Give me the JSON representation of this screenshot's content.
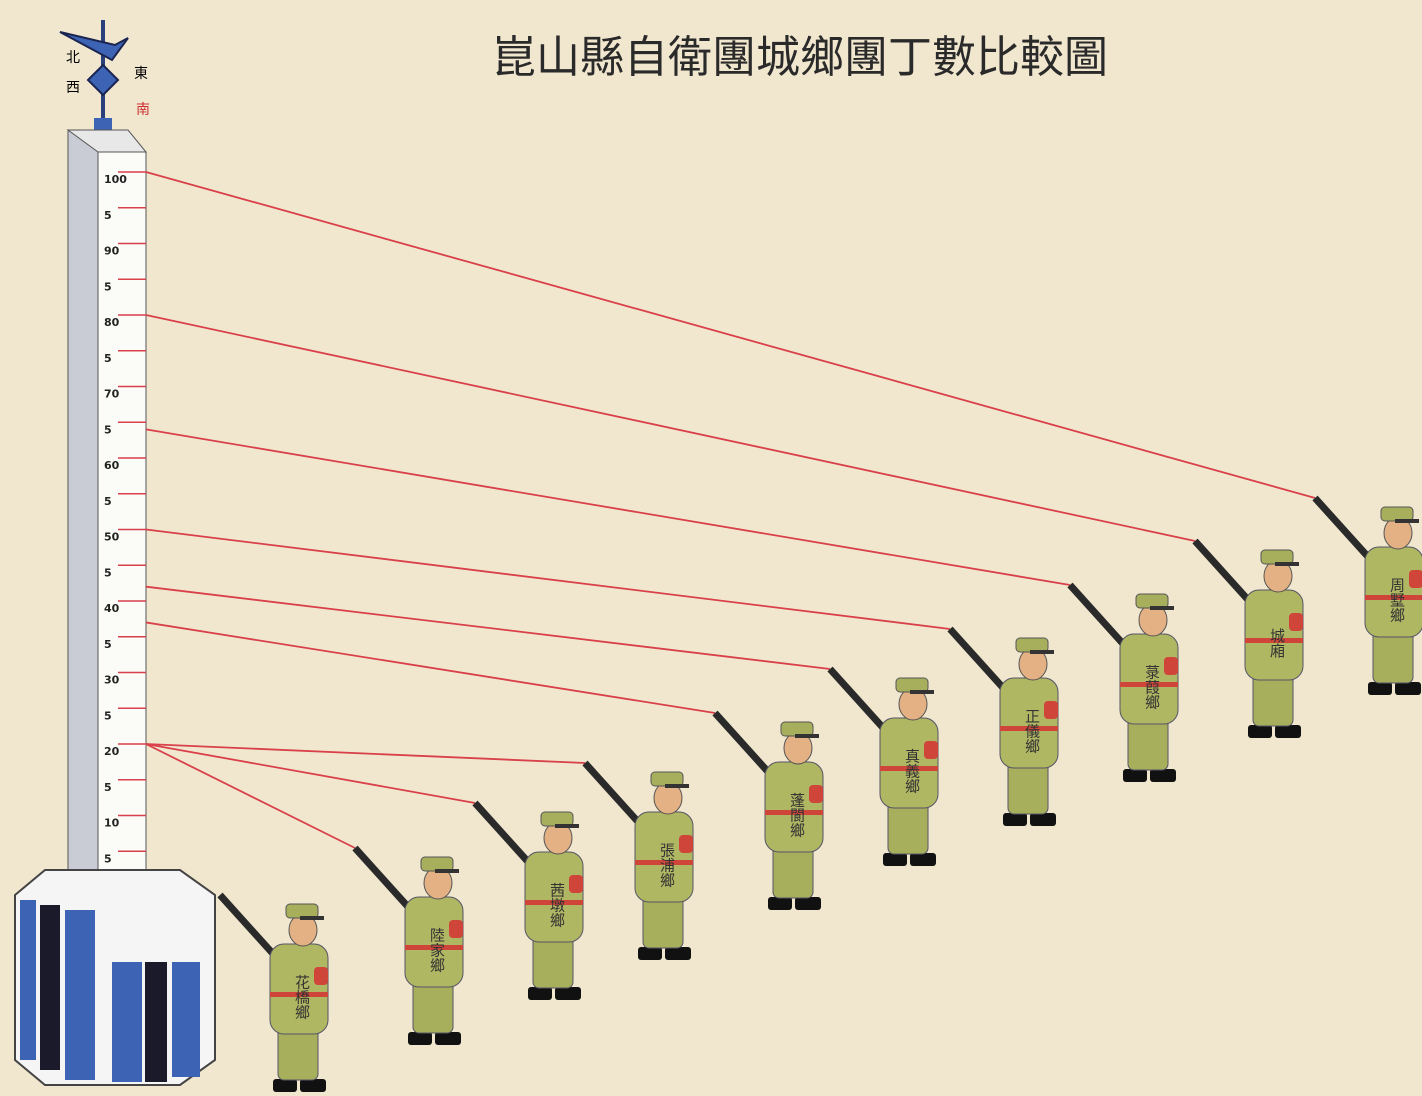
{
  "chart_data": {
    "type": "pictorial",
    "title": "崑山縣自衛團城鄉團丁數比較圖",
    "compass_labels": [
      "北",
      "西",
      "東",
      "南"
    ],
    "categories": [
      "周墅鄉",
      "城廂",
      "菉葭鄉",
      "正儀鄉",
      "真義鄉",
      "蓬閬鄉",
      "張浦鄉",
      "茜墩鄉",
      "陸家鄉",
      "花橋鄉"
    ],
    "values": [
      100,
      80,
      64,
      50,
      42,
      37,
      20,
      20,
      20,
      null
    ],
    "line_color": "#d9404a",
    "ylim": [
      0,
      100
    ],
    "yticks": [
      {
        "value": 100,
        "label": "100"
      },
      {
        "value": 95,
        "label": "5"
      },
      90,
      {
        "value": 85,
        "label": "5"
      },
      80,
      {
        "value": 75,
        "label": "5"
      },
      70,
      {
        "value": 65,
        "label": "5"
      },
      60,
      {
        "value": 55,
        "label": "5"
      },
      50,
      {
        "value": 45,
        "label": "5"
      },
      40,
      {
        "value": 35,
        "label": "5"
      },
      30,
      {
        "value": 25,
        "label": "5"
      },
      20,
      {
        "value": 15,
        "label": "5"
      },
      10,
      5
    ]
  }
}
